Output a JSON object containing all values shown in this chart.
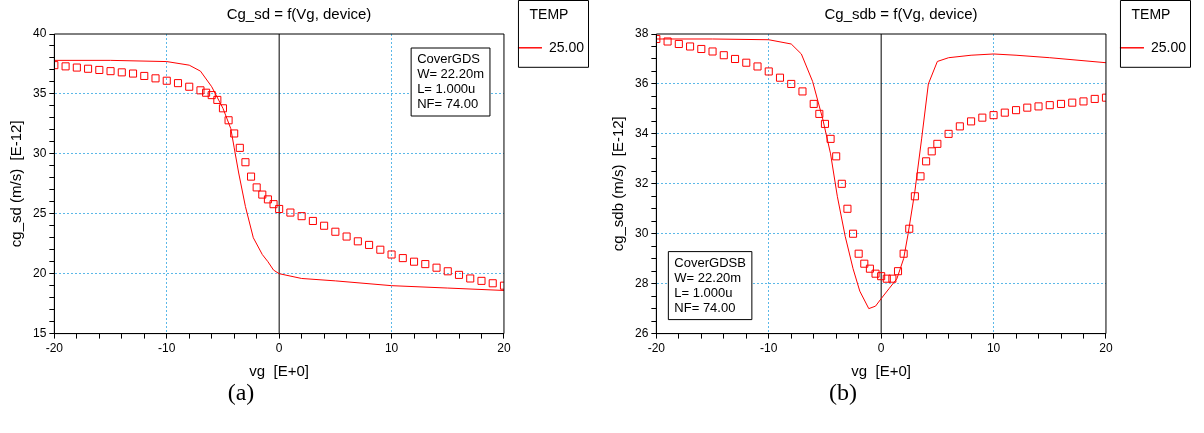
{
  "chart_data": [
    {
      "type": "scatter",
      "title": "Cg_sd = f(Vg, device)",
      "xlabel": "vg  [E+0]",
      "ylabel": "cg_sd (m/s)  [E-12]",
      "legend_title": "TEMP",
      "legend": "right",
      "grid": true,
      "marker": "square",
      "xlim": [
        -20,
        20
      ],
      "xticks": [
        -20,
        {
          "value": -18,
          "label": null
        },
        {
          "value": -16,
          "label": null
        },
        {
          "value": -14,
          "label": null
        },
        {
          "value": -12,
          "label": null
        },
        -10,
        {
          "value": -8,
          "label": null
        },
        {
          "value": -6,
          "label": null
        },
        {
          "value": -4,
          "label": null
        },
        {
          "value": -2,
          "label": null
        },
        0,
        {
          "value": 2,
          "label": null
        },
        {
          "value": 4,
          "label": null
        },
        {
          "value": 6,
          "label": null
        },
        {
          "value": 8,
          "label": null
        },
        10,
        {
          "value": 12,
          "label": null
        },
        {
          "value": 14,
          "label": null
        },
        {
          "value": 16,
          "label": null
        },
        {
          "value": 18,
          "label": null
        },
        20
      ],
      "ylim": [
        15,
        40
      ],
      "yticks": [
        15,
        {
          "value": 16,
          "label": null
        },
        {
          "value": 17,
          "label": null
        },
        {
          "value": 18,
          "label": null
        },
        {
          "value": 19,
          "label": null
        },
        20,
        {
          "value": 21,
          "label": null
        },
        {
          "value": 22,
          "label": null
        },
        {
          "value": 23,
          "label": null
        },
        {
          "value": 24,
          "label": null
        },
        25,
        {
          "value": 26,
          "label": null
        },
        {
          "value": 27,
          "label": null
        },
        {
          "value": 28,
          "label": null
        },
        {
          "value": 29,
          "label": null
        },
        30,
        {
          "value": 31,
          "label": null
        },
        {
          "value": 32,
          "label": null
        },
        {
          "value": 33,
          "label": null
        },
        {
          "value": 34,
          "label": null
        },
        35,
        {
          "value": 36,
          "label": null
        },
        {
          "value": 37,
          "label": null
        },
        {
          "value": 38,
          "label": null
        },
        {
          "value": 39,
          "label": null
        },
        40
      ],
      "ref_lines": [
        {
          "axis": "x",
          "value": 0,
          "color": "#000000"
        }
      ],
      "annotations": [
        "CoverGDS\nW= 22.20m\nL= 1.000u\nNF= 74.00",
        "(a)"
      ],
      "series": [
        {
          "color": "#ff0000",
          "x": [
            -20,
            -19,
            -18,
            -17,
            -16,
            -15,
            -14,
            -13,
            -12,
            -11,
            -10,
            -9,
            -8,
            -7,
            -6.5,
            -6,
            -5.5,
            -5,
            -4.5,
            -4,
            -3.5,
            -3,
            -2.5,
            -2,
            -1.5,
            -1,
            -0.5,
            0,
            1,
            2,
            3,
            4,
            5,
            6,
            7,
            8,
            9,
            10,
            11,
            12,
            13,
            14,
            15,
            16,
            17,
            18,
            19,
            20
          ],
          "values": [
            37.4,
            37.3,
            37.2,
            37.1,
            37.0,
            36.9,
            36.8,
            36.7,
            36.5,
            36.3,
            36.1,
            35.9,
            35.6,
            35.3,
            35.1,
            34.9,
            34.5,
            33.8,
            32.8,
            31.7,
            30.5,
            29.3,
            28.1,
            27.2,
            26.6,
            26.2,
            25.8,
            25.4,
            25.1,
            24.8,
            24.4,
            24.0,
            23.5,
            23.1,
            22.7,
            22.4,
            22.0,
            21.6,
            21.3,
            21.0,
            20.8,
            20.5,
            20.2,
            19.9,
            19.6,
            19.4,
            19.2,
            19.0
          ]
        },
        {
          "type": "line",
          "name": "25.00",
          "color": "#ff0000",
          "marker": "none",
          "x": [
            -20,
            -15,
            -10,
            -8,
            -7,
            -6,
            -5,
            -4.3,
            -4,
            -3.6,
            -3,
            -2.3,
            -1.5,
            -1,
            -0.5,
            0,
            2,
            5,
            10,
            15,
            20
          ],
          "values": [
            37.8,
            37.8,
            37.7,
            37.4,
            36.9,
            35.6,
            33.8,
            32.1,
            30.5,
            28.4,
            25.6,
            23.0,
            21.6,
            21.0,
            20.3,
            20.0,
            19.6,
            19.4,
            19.0,
            18.8,
            18.6
          ]
        }
      ]
    },
    {
      "type": "scatter",
      "title": "Cg_sdb = f(Vg, device)",
      "xlabel": "vg  [E+0]",
      "ylabel": "cg_sdb (m/s)  [E-12]",
      "legend_title": "TEMP",
      "legend": "right",
      "grid": true,
      "marker": "square",
      "xlim": [
        -20,
        20
      ],
      "xticks": [
        -20,
        {
          "value": -18,
          "label": null
        },
        {
          "value": -16,
          "label": null
        },
        {
          "value": -14,
          "label": null
        },
        {
          "value": -12,
          "label": null
        },
        -10,
        {
          "value": -8,
          "label": null
        },
        {
          "value": -6,
          "label": null
        },
        {
          "value": -4,
          "label": null
        },
        {
          "value": -2,
          "label": null
        },
        0,
        {
          "value": 2,
          "label": null
        },
        {
          "value": 4,
          "label": null
        },
        {
          "value": 6,
          "label": null
        },
        {
          "value": 8,
          "label": null
        },
        10,
        {
          "value": 12,
          "label": null
        },
        {
          "value": 14,
          "label": null
        },
        {
          "value": 16,
          "label": null
        },
        {
          "value": 18,
          "label": null
        },
        20
      ],
      "ylim": [
        26,
        38
      ],
      "yticks": [
        26,
        {
          "value": 26.5,
          "label": null
        },
        {
          "value": 27,
          "label": null
        },
        {
          "value": 27.5,
          "label": null
        },
        28,
        {
          "value": 28.5,
          "label": null
        },
        {
          "value": 29,
          "label": null
        },
        {
          "value": 29.5,
          "label": null
        },
        30,
        {
          "value": 30.5,
          "label": null
        },
        {
          "value": 31,
          "label": null
        },
        {
          "value": 31.5,
          "label": null
        },
        32,
        {
          "value": 32.5,
          "label": null
        },
        {
          "value": 33,
          "label": null
        },
        {
          "value": 33.5,
          "label": null
        },
        34,
        {
          "value": 34.5,
          "label": null
        },
        {
          "value": 35,
          "label": null
        },
        {
          "value": 35.5,
          "label": null
        },
        36,
        {
          "value": 36.5,
          "label": null
        },
        {
          "value": 37,
          "label": null
        },
        {
          "value": 37.5,
          "label": null
        },
        38
      ],
      "ref_lines": [
        {
          "axis": "x",
          "value": 0,
          "color": "#000000"
        }
      ],
      "annotations": [
        "CoverGDSB\nW= 22.20m\nL= 1.000u\nNF= 74.00",
        "(b)"
      ],
      "series": [
        {
          "color": "#ff0000",
          "x": [
            -20,
            -19,
            -18,
            -17,
            -16,
            -15,
            -14,
            -13,
            -12,
            -11,
            -10,
            -9,
            -8,
            -7,
            -6,
            -5.5,
            -5,
            -4.5,
            -4,
            -3.5,
            -3,
            -2.5,
            -2,
            -1.5,
            -1,
            -0.5,
            0,
            0.5,
            1,
            1.5,
            2,
            2.5,
            3,
            3.5,
            4,
            4.5,
            5,
            6,
            7,
            8,
            9,
            10,
            11,
            12,
            13,
            14,
            15,
            16,
            17,
            18,
            19,
            20
          ],
          "values": [
            37.8,
            37.7,
            37.6,
            37.5,
            37.4,
            37.3,
            37.15,
            37.0,
            36.85,
            36.7,
            36.5,
            36.25,
            36.0,
            35.7,
            35.2,
            34.8,
            34.4,
            33.8,
            33.1,
            32.0,
            31.0,
            30.0,
            29.2,
            28.8,
            28.6,
            28.4,
            28.3,
            28.2,
            28.2,
            28.5,
            29.2,
            30.2,
            31.5,
            32.3,
            32.9,
            33.3,
            33.6,
            34.0,
            34.3,
            34.5,
            34.65,
            34.75,
            34.85,
            34.95,
            35.05,
            35.1,
            35.15,
            35.2,
            35.25,
            35.3,
            35.4,
            35.45
          ]
        },
        {
          "type": "line",
          "name": "25.00",
          "color": "#ff0000",
          "marker": "none",
          "x": [
            -20,
            -15,
            -10,
            -8,
            -7.1,
            -6.1,
            -5.2,
            -4.5,
            -3.9,
            -3.2,
            -2.5,
            -1.9,
            -1.1,
            -0.5,
            0,
            0.7,
            1.4,
            2,
            2.4,
            3,
            3.6,
            4.2,
            5,
            6,
            8,
            10,
            12,
            15,
            20
          ],
          "values": [
            37.8,
            37.8,
            37.77,
            37.6,
            37.2,
            36.1,
            34.6,
            33.2,
            31.5,
            29.9,
            28.6,
            27.7,
            27.0,
            27.1,
            27.4,
            27.8,
            28.2,
            29.0,
            30.0,
            31.7,
            33.8,
            36.0,
            36.9,
            37.05,
            37.15,
            37.2,
            37.15,
            37.05,
            36.85
          ]
        }
      ]
    }
  ]
}
